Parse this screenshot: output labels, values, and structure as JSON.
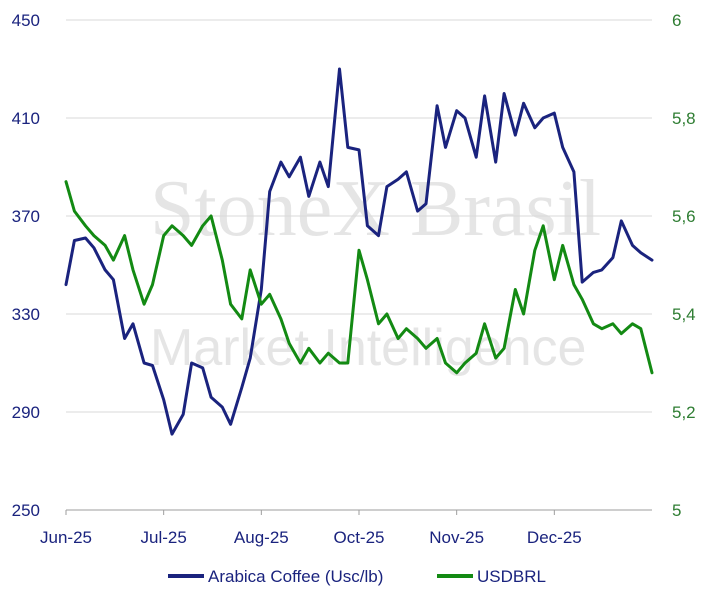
{
  "watermark": {
    "line1": "StoneX Brasil",
    "line2": "Market Intelligence"
  },
  "chart_data": {
    "type": "line",
    "title": "",
    "xlabel": "",
    "ylabel": "",
    "x_ticks": [
      "Jun-25",
      "Jul-25",
      "Aug-25",
      "Oct-25",
      "Nov-25",
      "Dec-25"
    ],
    "y_left": {
      "ticks": [
        "250",
        "290",
        "330",
        "370",
        "410",
        "450"
      ],
      "range": [
        250,
        450
      ]
    },
    "y_right": {
      "ticks": [
        "5",
        "5,2",
        "5,4",
        "5,6",
        "5,8",
        "6"
      ],
      "range": [
        5,
        6
      ]
    },
    "grid": true,
    "legend_position": "bottom",
    "series": [
      {
        "name": "Arabica Coffee (Usc/lb)",
        "axis": "left",
        "color": "#1a237e",
        "x": [
          "2025-06-02",
          "2025-06-05",
          "2025-06-09",
          "2025-06-12",
          "2025-06-16",
          "2025-06-19",
          "2025-06-23",
          "2025-06-26",
          "2025-06-30",
          "2025-07-03",
          "2025-07-07",
          "2025-07-10",
          "2025-07-14",
          "2025-07-17",
          "2025-07-21",
          "2025-07-24",
          "2025-07-28",
          "2025-07-31",
          "2025-08-04",
          "2025-08-07",
          "2025-08-11",
          "2025-08-14",
          "2025-08-18",
          "2025-08-21",
          "2025-08-25",
          "2025-08-28",
          "2025-09-01",
          "2025-09-04",
          "2025-09-08",
          "2025-09-11",
          "2025-09-15",
          "2025-09-18",
          "2025-09-22",
          "2025-09-25",
          "2025-09-29",
          "2025-10-02",
          "2025-10-06",
          "2025-10-09",
          "2025-10-13",
          "2025-10-16",
          "2025-10-20",
          "2025-10-23",
          "2025-10-27",
          "2025-10-30",
          "2025-11-03",
          "2025-11-06",
          "2025-11-10",
          "2025-11-13",
          "2025-11-17",
          "2025-11-20",
          "2025-11-24",
          "2025-11-27",
          "2025-12-01",
          "2025-12-04",
          "2025-12-08",
          "2025-12-11",
          "2025-12-15",
          "2025-12-18",
          "2025-12-22",
          "2025-12-25",
          "2025-12-29"
        ],
        "values": [
          342,
          360,
          361,
          357,
          348,
          344,
          320,
          326,
          310,
          309,
          295,
          281,
          289,
          310,
          308,
          296,
          292,
          285,
          300,
          312,
          340,
          380,
          392,
          386,
          394,
          378,
          392,
          382,
          430,
          398,
          397,
          366,
          362,
          382,
          385,
          388,
          372,
          375,
          415,
          398,
          413,
          410,
          394,
          419,
          392,
          420,
          403,
          416,
          406,
          410,
          412,
          398,
          388,
          343,
          347,
          348,
          353,
          368,
          358,
          355,
          352
        ]
      },
      {
        "name": "USDBRL",
        "axis": "right",
        "color": "#138a13",
        "x": [
          "2025-06-02",
          "2025-06-05",
          "2025-06-09",
          "2025-06-12",
          "2025-06-16",
          "2025-06-19",
          "2025-06-23",
          "2025-06-26",
          "2025-06-30",
          "2025-07-03",
          "2025-07-07",
          "2025-07-10",
          "2025-07-14",
          "2025-07-17",
          "2025-07-21",
          "2025-07-24",
          "2025-07-28",
          "2025-07-31",
          "2025-08-04",
          "2025-08-07",
          "2025-08-11",
          "2025-08-14",
          "2025-08-18",
          "2025-08-21",
          "2025-08-25",
          "2025-08-28",
          "2025-09-01",
          "2025-09-04",
          "2025-09-08",
          "2025-09-11",
          "2025-09-15",
          "2025-09-18",
          "2025-09-22",
          "2025-09-25",
          "2025-09-29",
          "2025-10-02",
          "2025-10-06",
          "2025-10-09",
          "2025-10-13",
          "2025-10-16",
          "2025-10-20",
          "2025-10-23",
          "2025-10-27",
          "2025-10-30",
          "2025-11-03",
          "2025-11-06",
          "2025-11-10",
          "2025-11-13",
          "2025-11-17",
          "2025-11-20",
          "2025-11-24",
          "2025-11-27",
          "2025-12-01",
          "2025-12-04",
          "2025-12-08",
          "2025-12-11",
          "2025-12-15",
          "2025-12-18",
          "2025-12-22",
          "2025-12-25",
          "2025-12-29"
        ],
        "values": [
          5.67,
          5.61,
          5.58,
          5.56,
          5.54,
          5.51,
          5.56,
          5.49,
          5.42,
          5.46,
          5.56,
          5.58,
          5.56,
          5.54,
          5.58,
          5.6,
          5.51,
          5.42,
          5.39,
          5.49,
          5.42,
          5.44,
          5.39,
          5.34,
          5.3,
          5.33,
          5.3,
          5.32,
          5.3,
          5.3,
          5.53,
          5.47,
          5.38,
          5.4,
          5.35,
          5.37,
          5.35,
          5.33,
          5.35,
          5.3,
          5.28,
          5.3,
          5.32,
          5.38,
          5.31,
          5.33,
          5.45,
          5.4,
          5.53,
          5.58,
          5.47,
          5.54,
          5.46,
          5.43,
          5.38,
          5.37,
          5.38,
          5.36,
          5.38,
          5.37,
          5.28
        ]
      }
    ]
  }
}
